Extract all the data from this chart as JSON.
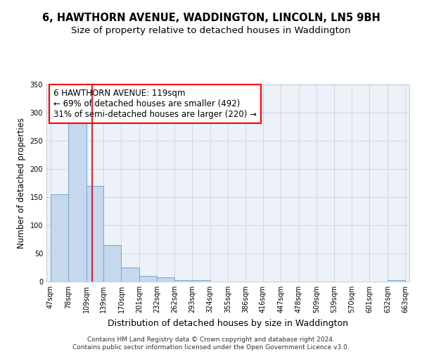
{
  "title1": "6, HAWTHORN AVENUE, WADDINGTON, LINCOLN, LN5 9BH",
  "title2": "Size of property relative to detached houses in Waddington",
  "xlabel": "Distribution of detached houses by size in Waddington",
  "ylabel": "Number of detached properties",
  "bar_left_edges": [
    47,
    78,
    109,
    139,
    170,
    201,
    232,
    262,
    293,
    324,
    355,
    386,
    416,
    447,
    478,
    509,
    539,
    570,
    601,
    632
  ],
  "bar_widths": [
    31,
    31,
    30,
    31,
    31,
    31,
    30,
    31,
    31,
    31,
    31,
    30,
    31,
    31,
    31,
    30,
    31,
    31,
    31,
    31
  ],
  "bar_heights": [
    155,
    285,
    170,
    65,
    25,
    10,
    7,
    2,
    2,
    0,
    0,
    0,
    0,
    0,
    0,
    0,
    0,
    0,
    0,
    2
  ],
  "bar_color": "#c5d8ee",
  "bar_edgecolor": "#6fa8d0",
  "bar_linewidth": 0.7,
  "vline_x": 119,
  "vline_color": "#cc0000",
  "vline_linewidth": 1.2,
  "annotation_text": "6 HAWTHORN AVENUE: 119sqm\n← 69% of detached houses are smaller (492)\n31% of semi-detached houses are larger (220) →",
  "ylim": [
    0,
    350
  ],
  "xlim": [
    40,
    670
  ],
  "xtick_labels": [
    "47sqm",
    "78sqm",
    "109sqm",
    "139sqm",
    "170sqm",
    "201sqm",
    "232sqm",
    "262sqm",
    "293sqm",
    "324sqm",
    "355sqm",
    "386sqm",
    "416sqm",
    "447sqm",
    "478sqm",
    "509sqm",
    "539sqm",
    "570sqm",
    "601sqm",
    "632sqm",
    "663sqm"
  ],
  "xtick_positions": [
    47,
    78,
    109,
    139,
    170,
    201,
    232,
    262,
    293,
    324,
    355,
    386,
    416,
    447,
    478,
    509,
    539,
    570,
    601,
    632,
    663
  ],
  "grid_color": "#c8d4e8",
  "bg_color": "#edf1f8",
  "footnote": "Contains HM Land Registry data © Crown copyright and database right 2024.\nContains public sector information licensed under the Open Government Licence v3.0.",
  "title1_fontsize": 10.5,
  "title2_fontsize": 9.5,
  "xlabel_fontsize": 9,
  "ylabel_fontsize": 8.5,
  "tick_fontsize": 7,
  "annotation_fontsize": 8.5,
  "footnote_fontsize": 6.5
}
